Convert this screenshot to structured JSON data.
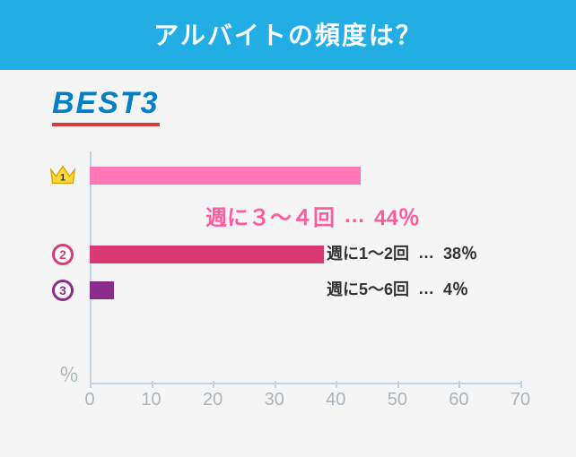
{
  "header": {
    "title": "アルバイトの頻度は？"
  },
  "best3_label": "BEST3",
  "chart": {
    "type": "bar",
    "xlim": [
      0,
      70
    ],
    "tick_step": 10,
    "pct_sign": "％",
    "axis_color": "#bfd4e0",
    "tick_label_color": "#a9b4bb",
    "background_color": "#f5f5f5",
    "bars": [
      {
        "rank": "1",
        "value": 44,
        "bar_color": "#ff77b4",
        "label": "週に３～４回",
        "dots": "…",
        "pct": "44％",
        "highlight": true,
        "label_color": "#ff5b9e",
        "crown": true
      },
      {
        "rank": "2",
        "value": 38,
        "bar_color": "#d93a72",
        "label": "週に1～2回",
        "dots": "…",
        "pct": "38％",
        "rank_color": "#d93a72"
      },
      {
        "rank": "3",
        "value": 4,
        "bar_color": "#8b2b8b",
        "label": "週に5～6回",
        "dots": "…",
        "pct": "4％",
        "rank_color": "#8b2b8b"
      }
    ],
    "tick_labels": [
      "0",
      "10",
      "20",
      "30",
      "40",
      "50",
      "60",
      "70"
    ]
  }
}
